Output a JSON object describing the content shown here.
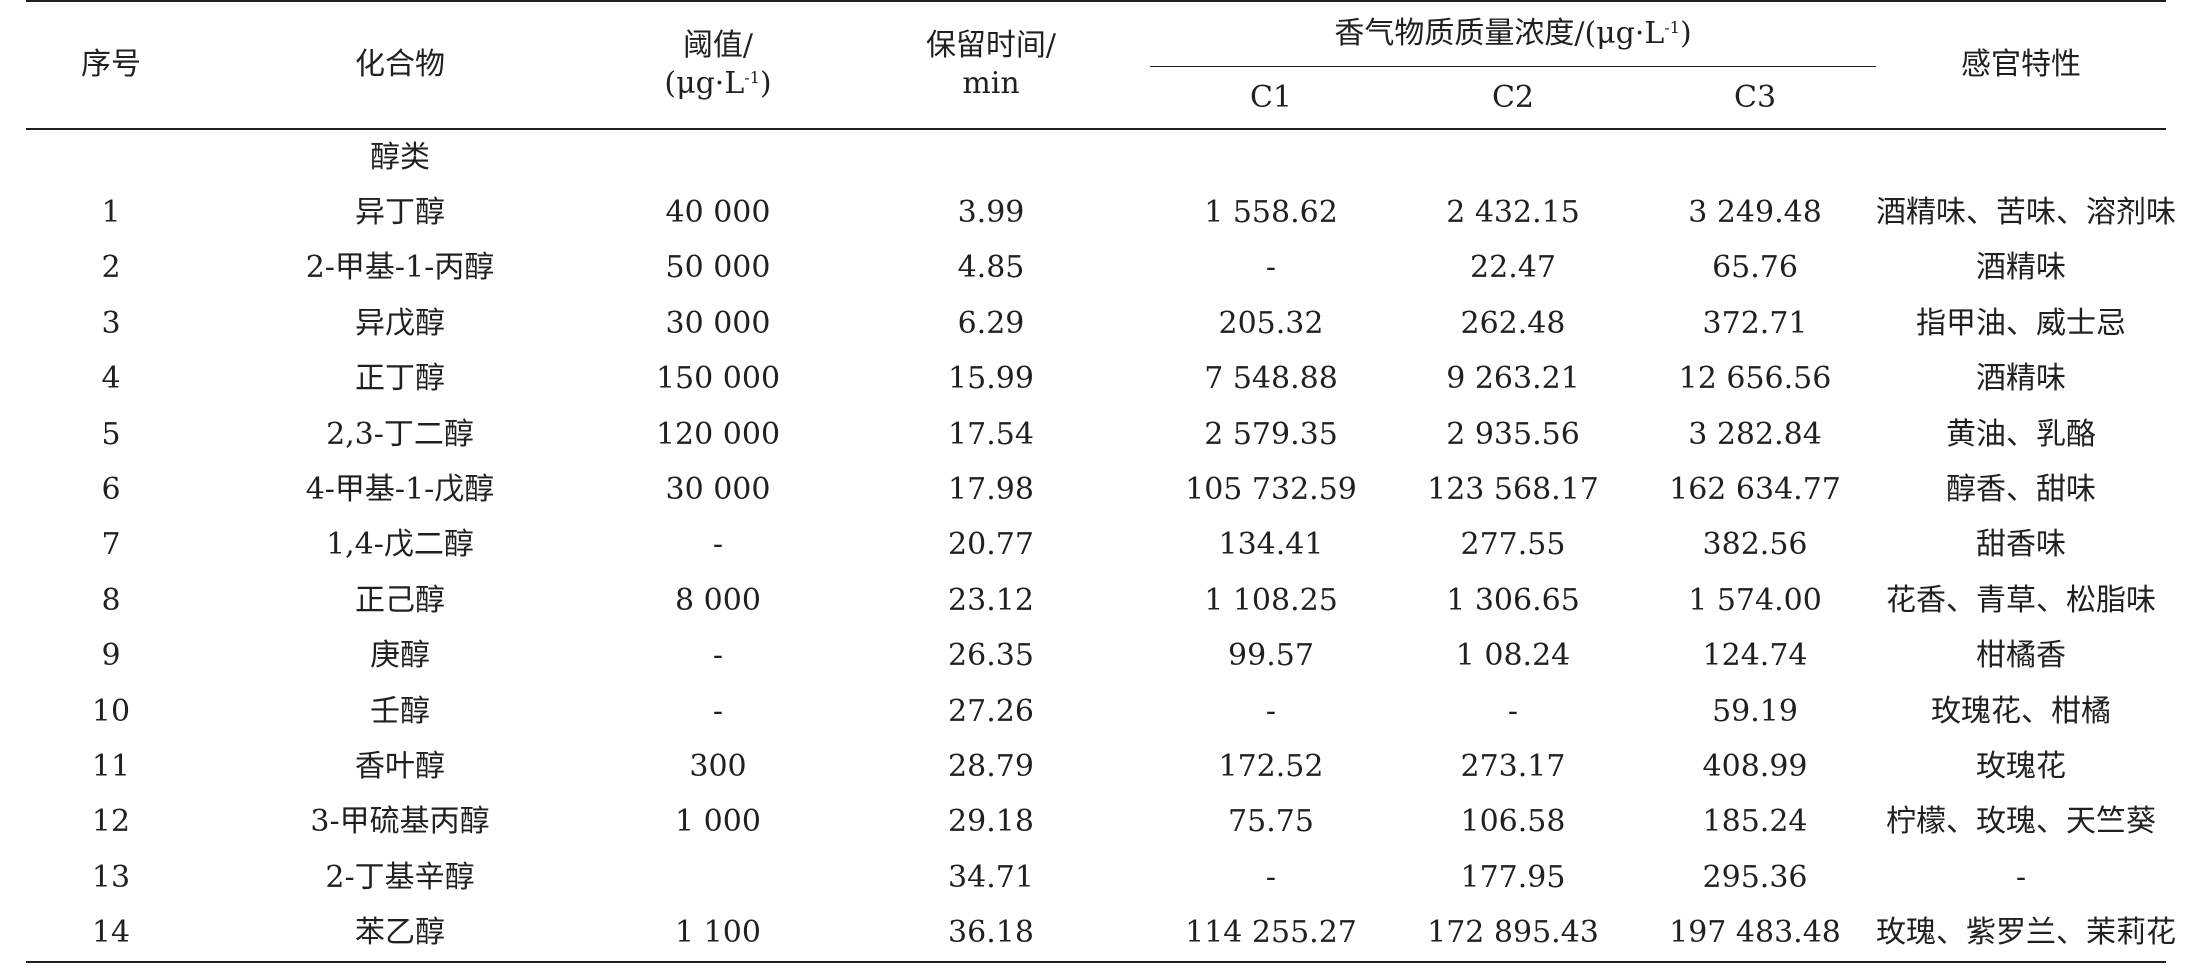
{
  "header": {
    "col_index": "序号",
    "col_compound": "化合物",
    "col_threshold_line1": "阈值/",
    "col_threshold_line2": "(μg·L",
    "col_threshold_sup": "-1",
    "col_threshold_close": ")",
    "col_rt_line1": "保留时间/",
    "col_rt_line2": "min",
    "col_conc_group": "香气物质质量浓度/(μg·L",
    "col_conc_group_sup": "-1",
    "col_conc_group_close": ")",
    "col_c1": "C1",
    "col_c2": "C2",
    "col_c3": "C3",
    "col_sensory": "感官特性"
  },
  "category": "醇类",
  "rows": [
    {
      "idx": "1",
      "name": "异丁醇",
      "threshold": "40 000",
      "rt": "3.99",
      "c1": "1 558.62",
      "c2": "2 432.15",
      "c3": "3 249.48",
      "sensory": "酒精味、苦味、溶剂味"
    },
    {
      "idx": "2",
      "name": "2-甲基-1-丙醇",
      "threshold": "50 000",
      "rt": "4.85",
      "c1": "-",
      "c2": "22.47",
      "c3": "65.76",
      "sensory": "酒精味"
    },
    {
      "idx": "3",
      "name": "异戊醇",
      "threshold": "30 000",
      "rt": "6.29",
      "c1": "205.32",
      "c2": "262.48",
      "c3": "372.71",
      "sensory": "指甲油、威士忌"
    },
    {
      "idx": "4",
      "name": "正丁醇",
      "threshold": "150 000",
      "rt": "15.99",
      "c1": "7 548.88",
      "c2": "9 263.21",
      "c3": "12 656.56",
      "sensory": "酒精味"
    },
    {
      "idx": "5",
      "name": "2,3-丁二醇",
      "threshold": "120 000",
      "rt": "17.54",
      "c1": "2 579.35",
      "c2": "2 935.56",
      "c3": "3 282.84",
      "sensory": "黄油、乳酪"
    },
    {
      "idx": "6",
      "name": "4-甲基-1-戊醇",
      "threshold": "30 000",
      "rt": "17.98",
      "c1": "105 732.59",
      "c2": "123 568.17",
      "c3": "162 634.77",
      "sensory": "醇香、甜味"
    },
    {
      "idx": "7",
      "name": "1,4-戊二醇",
      "threshold": "-",
      "rt": "20.77",
      "c1": "134.41",
      "c2": "277.55",
      "c3": "382.56",
      "sensory": "甜香味"
    },
    {
      "idx": "8",
      "name": "正己醇",
      "threshold": "8 000",
      "rt": "23.12",
      "c1": "1 108.25",
      "c2": "1 306.65",
      "c3": "1 574.00",
      "sensory": "花香、青草、松脂味"
    },
    {
      "idx": "9",
      "name": "庚醇",
      "threshold": "-",
      "rt": "26.35",
      "c1": "99.57",
      "c2": "1 08.24",
      "c3": "124.74",
      "sensory": "柑橘香"
    },
    {
      "idx": "10",
      "name": "壬醇",
      "threshold": "-",
      "rt": "27.26",
      "c1": "-",
      "c2": "-",
      "c3": "59.19",
      "sensory": "玫瑰花、柑橘"
    },
    {
      "idx": "11",
      "name": "香叶醇",
      "threshold": "300",
      "rt": "28.79",
      "c1": "172.52",
      "c2": "273.17",
      "c3": "408.99",
      "sensory": "玫瑰花"
    },
    {
      "idx": "12",
      "name": "3-甲硫基丙醇",
      "threshold": "1 000",
      "rt": "29.18",
      "c1": "75.75",
      "c2": "106.58",
      "c3": "185.24",
      "sensory": "柠檬、玫瑰、天竺葵"
    },
    {
      "idx": "13",
      "name": "2-丁基辛醇",
      "threshold": "",
      "rt": "34.71",
      "c1": "-",
      "c2": "177.95",
      "c3": "295.36",
      "sensory": "-"
    },
    {
      "idx": "14",
      "name": "苯乙醇",
      "threshold": "1 100",
      "rt": "36.18",
      "c1": "114 255.27",
      "c2": "172 895.43",
      "c3": "197 483.48",
      "sensory": "玫瑰、紫罗兰、茉莉花"
    }
  ]
}
